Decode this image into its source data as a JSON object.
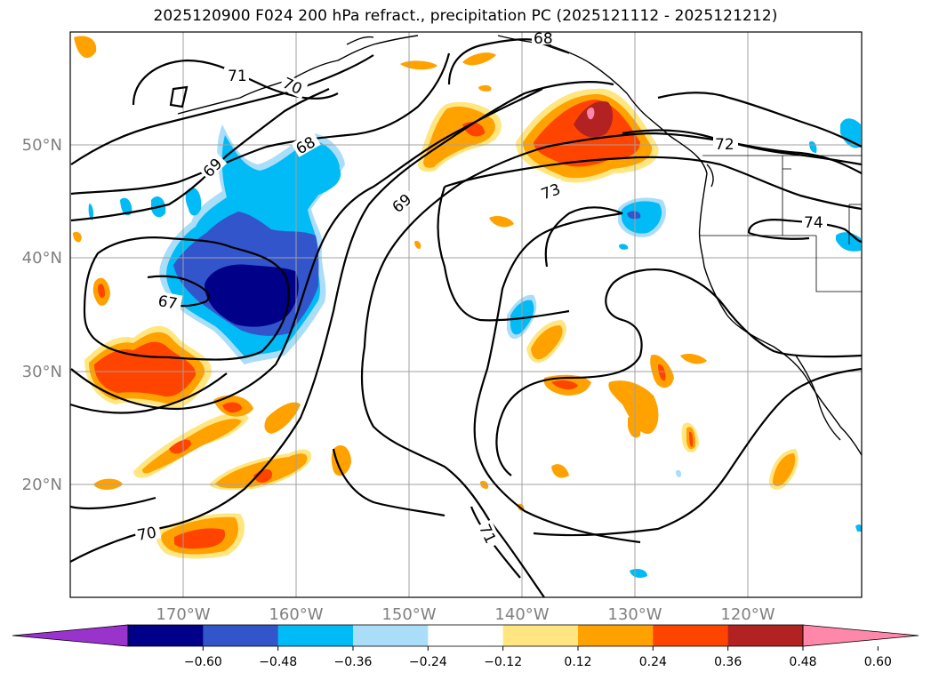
{
  "title": "2025120900 F024 200 hPa refract., precipitation PC (2025121112 - 2025121212)",
  "lat_labels": [
    "50°N",
    "40°N",
    "30°N",
    "20°N"
  ],
  "lon_labels": [
    "170°W",
    "160°W",
    "150°W",
    "140°W",
    "130°W",
    "120°W"
  ],
  "colorbar": {
    "tick_labels": [
      "−0.60",
      "−0.48",
      "−0.36",
      "−0.24",
      "−0.12",
      "0.12",
      "0.24",
      "0.36",
      "0.48",
      "0.60"
    ],
    "colors": [
      "#9933cc",
      "#000088",
      "#3355cc",
      "#00bbf5",
      "#aaddf8",
      "#ffffff",
      "#ffe680",
      "#ffa200",
      "#ff4400",
      "#b22222",
      "#ff88aa"
    ]
  },
  "contour_labels": [
    "71",
    "70",
    "68",
    "68",
    "69",
    "67",
    "69",
    "72",
    "73",
    "74",
    "70",
    "71"
  ],
  "chart_data": {
    "type": "map",
    "projection": "latitude-longitude",
    "lon_range": [
      "180°W",
      "110°W"
    ],
    "lat_range": [
      "10°N",
      "60°N"
    ],
    "contour_field": "200 hPa refractivity",
    "contour_levels": [
      67,
      68,
      69,
      70,
      71,
      72,
      73,
      74
    ],
    "shaded_field": "precipitation PC",
    "shading_levels": [
      -0.6,
      -0.48,
      -0.36,
      -0.24,
      -0.12,
      0.12,
      0.24,
      0.36,
      0.48,
      0.6
    ],
    "grid": true
  }
}
